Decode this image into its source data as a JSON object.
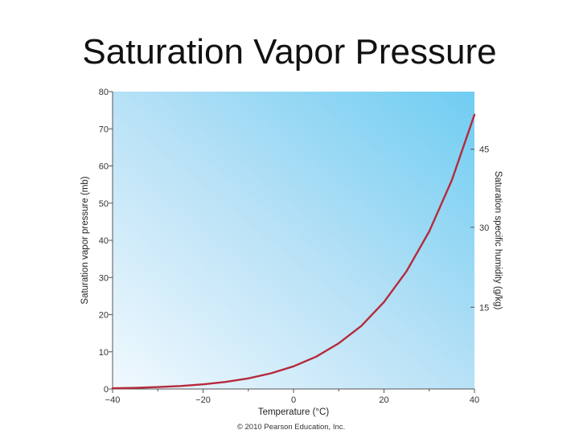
{
  "slide": {
    "title": "Saturation Vapor Pressure"
  },
  "chart_data": {
    "type": "line",
    "xlabel": "Temperature (°C)",
    "ylabel": "Saturation vapor pressure (mb)",
    "y2label": "Saturation specific humidity (g/kg)",
    "xlim": [
      -40,
      40
    ],
    "ylim": [
      0,
      80
    ],
    "x_ticks": [
      "−40",
      "−20",
      "0",
      "20",
      "40"
    ],
    "x_tick_values": [
      -40,
      -20,
      0,
      20,
      40
    ],
    "y_ticks": [
      "0",
      "10",
      "20",
      "30",
      "40",
      "50",
      "60",
      "70",
      "80"
    ],
    "y_tick_values": [
      0,
      10,
      20,
      30,
      40,
      50,
      60,
      70,
      80
    ],
    "y2_ticks": [
      "15",
      "30",
      "45"
    ],
    "y2_tick_values_mb": [
      22,
      43.5,
      64.5
    ],
    "grid": false,
    "series": [
      {
        "x": [
          -40,
          -35,
          -30,
          -25,
          -20,
          -15,
          -10,
          -5,
          0,
          5,
          10,
          15,
          20,
          25,
          30,
          35,
          40
        ],
        "y": [
          0.19,
          0.31,
          0.51,
          0.81,
          1.25,
          1.91,
          2.86,
          4.21,
          6.1,
          8.7,
          12.3,
          17.0,
          23.4,
          31.7,
          42.4,
          56.2,
          73.8
        ],
        "color": "#b52a3c"
      }
    ],
    "copyright": "© 2010 Pearson Education, Inc."
  }
}
